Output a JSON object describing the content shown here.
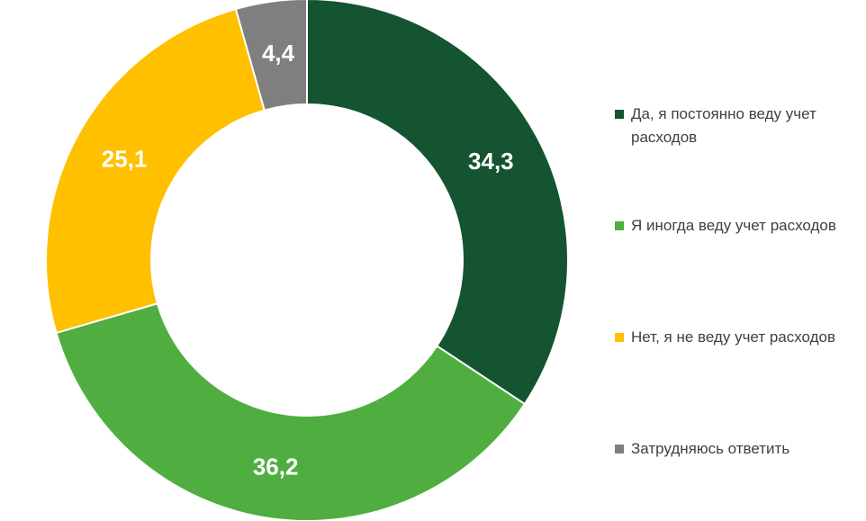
{
  "chart_data": {
    "type": "pie",
    "donut": true,
    "title": "",
    "legend_position": "right",
    "slices": [
      {
        "label": "Да, я постоянно веду учет расходов",
        "value": 34.3,
        "display": "34,3",
        "color": "#145430"
      },
      {
        "label": "Я иногда веду учет расходов",
        "value": 36.2,
        "display": "36,2",
        "color": "#4fae3f"
      },
      {
        "label": "Нет, я не веду учет расходов",
        "value": 25.1,
        "display": "25,1",
        "color": "#ffc000"
      },
      {
        "label": "Затрудняюсь ответить",
        "value": 4.4,
        "display": "4,4",
        "color": "#7f7f7f"
      }
    ]
  }
}
